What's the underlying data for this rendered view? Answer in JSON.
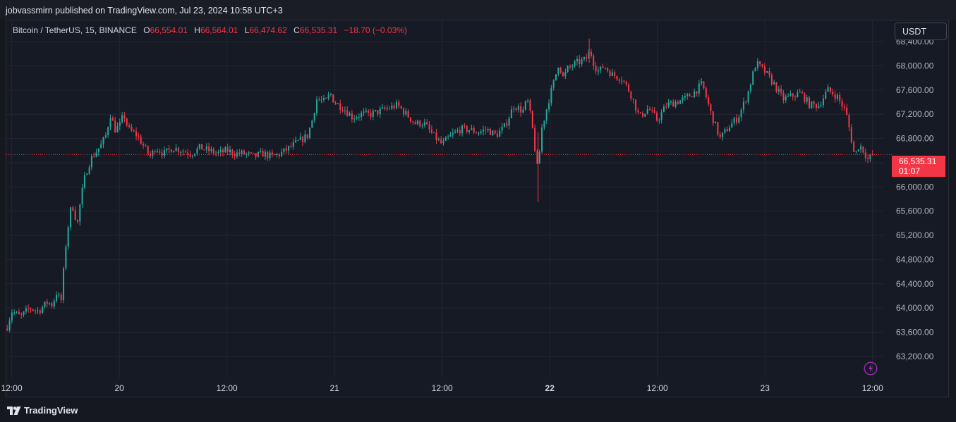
{
  "publisher_line": "jobvassmirn published on TradingView.com, Jul 23, 2024 10:58 UTC+3",
  "legend": {
    "symbol": "Bitcoin / TetherUS, 15, BINANCE",
    "o_label": "O",
    "o_value": "66,554.01",
    "h_label": "H",
    "h_value": "66,564.01",
    "l_label": "L",
    "l_value": "66,474.62",
    "c_label": "C",
    "c_value": "66,535.31",
    "change": "−18.70 (−0.03%)"
  },
  "currency_button": "USDT",
  "price_badge": {
    "price": "66,535.31",
    "countdown": "01:07"
  },
  "brand": "TradingView",
  "icons": {
    "flash": "lightning-bolt-icon",
    "logo": "tradingview-logo-icon"
  },
  "colors": {
    "up": "#26a69a",
    "down": "#f23645",
    "background": "#161a25",
    "grid": "#242733",
    "alert": "#9c27b0"
  },
  "chart_data": {
    "type": "candlestick",
    "symbol": "Bitcoin / TetherUS",
    "interval": "15",
    "exchange": "BINANCE",
    "currency": "USDT",
    "ylim": [
      62850,
      68750
    ],
    "y_ticks": [
      "68,400.00",
      "68,000.00",
      "67,600.00",
      "67,200.00",
      "66,800.00",
      "66,400.00",
      "66,000.00",
      "65,600.00",
      "65,200.00",
      "64,800.00",
      "64,400.00",
      "64,000.00",
      "63,600.00",
      "63,200.00"
    ],
    "x_ticks": [
      {
        "label": "12:00",
        "t": 0
      },
      {
        "label": "20",
        "t": 12
      },
      {
        "label": "12:00",
        "t": 24
      },
      {
        "label": "21",
        "t": 36
      },
      {
        "label": "12:00",
        "t": 48
      },
      {
        "label": "22",
        "t": 60
      },
      {
        "label": "12:00",
        "t": 72
      },
      {
        "label": "23",
        "t": 84
      },
      {
        "label": "12:00",
        "t": 96
      }
    ],
    "xlim": [
      -0.6,
      97.2
    ],
    "last_price": 66535.31,
    "series": [
      {
        "t": -0.5,
        "close": 63700
      },
      {
        "t": 0,
        "close": 63950
      },
      {
        "t": 1,
        "close": 63850
      },
      {
        "t": 2,
        "close": 64000
      },
      {
        "t": 3,
        "close": 63950
      },
      {
        "t": 4,
        "close": 64100
      },
      {
        "t": 4.5,
        "close": 64050
      },
      {
        "t": 5,
        "close": 64250
      },
      {
        "t": 5.5,
        "close": 64100
      },
      {
        "t": 6,
        "close": 65000
      },
      {
        "t": 6.5,
        "close": 65600
      },
      {
        "t": 7,
        "close": 65700
      },
      {
        "t": 7.2,
        "close": 65250
      },
      {
        "t": 7.7,
        "close": 65800
      },
      {
        "t": 8.2,
        "close": 66200
      },
      {
        "t": 8.8,
        "close": 66450
      },
      {
        "t": 9.5,
        "close": 66600
      },
      {
        "t": 10,
        "close": 66700
      },
      {
        "t": 10.5,
        "close": 66850
      },
      {
        "t": 11,
        "close": 67200
      },
      {
        "t": 11.5,
        "close": 66950
      },
      {
        "t": 12,
        "close": 67000
      },
      {
        "t": 12.5,
        "close": 67200
      },
      {
        "t": 13,
        "close": 66950
      },
      {
        "t": 14,
        "close": 66850
      },
      {
        "t": 15,
        "close": 66600
      },
      {
        "t": 15.5,
        "close": 66500
      },
      {
        "t": 16,
        "close": 66650
      },
      {
        "t": 17,
        "close": 66550
      },
      {
        "t": 18,
        "close": 66650
      },
      {
        "t": 19,
        "close": 66600
      },
      {
        "t": 20,
        "close": 66550
      },
      {
        "t": 21,
        "close": 66650
      },
      {
        "t": 22,
        "close": 66600
      },
      {
        "t": 23,
        "close": 66550
      },
      {
        "t": 24,
        "close": 66600
      },
      {
        "t": 25,
        "close": 66550
      },
      {
        "t": 26,
        "close": 66550
      },
      {
        "t": 27,
        "close": 66500
      },
      {
        "t": 28,
        "close": 66550
      },
      {
        "t": 29,
        "close": 66500
      },
      {
        "t": 30,
        "close": 66550
      },
      {
        "t": 31,
        "close": 66650
      },
      {
        "t": 32,
        "close": 66750
      },
      {
        "t": 33,
        "close": 66850
      },
      {
        "t": 33.5,
        "close": 67100
      },
      {
        "t": 34,
        "close": 67450
      },
      {
        "t": 35,
        "close": 67400
      },
      {
        "t": 35.5,
        "close": 67550
      },
      {
        "t": 36,
        "close": 67400
      },
      {
        "t": 37,
        "close": 67300
      },
      {
        "t": 38,
        "close": 67150
      },
      {
        "t": 39,
        "close": 67200
      },
      {
        "t": 40,
        "close": 67200
      },
      {
        "t": 41,
        "close": 67250
      },
      {
        "t": 42,
        "close": 67300
      },
      {
        "t": 43,
        "close": 67350
      },
      {
        "t": 44,
        "close": 67200
      },
      {
        "t": 45,
        "close": 67050
      },
      {
        "t": 46,
        "close": 67050
      },
      {
        "t": 47,
        "close": 66850
      },
      {
        "t": 48,
        "close": 66700
      },
      {
        "t": 49,
        "close": 66850
      },
      {
        "t": 50,
        "close": 66950
      },
      {
        "t": 51,
        "close": 66950
      },
      {
        "t": 52,
        "close": 66900
      },
      {
        "t": 53,
        "close": 66950
      },
      {
        "t": 54,
        "close": 66850
      },
      {
        "t": 55,
        "close": 67000
      },
      {
        "t": 56,
        "close": 67350
      },
      {
        "t": 57,
        "close": 67250
      },
      {
        "t": 57.5,
        "close": 67450
      },
      {
        "t": 58,
        "close": 67050
      },
      {
        "t": 58.7,
        "close": 66200
      },
      {
        "t": 59,
        "close": 66900
      },
      {
        "t": 59.5,
        "close": 67200
      },
      {
        "t": 60,
        "close": 67500
      },
      {
        "t": 60.5,
        "close": 67750
      },
      {
        "t": 61,
        "close": 68050
      },
      {
        "t": 61.5,
        "close": 67800
      },
      {
        "t": 62,
        "close": 67950
      },
      {
        "t": 63,
        "close": 68050
      },
      {
        "t": 64,
        "close": 68100
      },
      {
        "t": 64.5,
        "close": 68250
      },
      {
        "t": 65,
        "close": 68000
      },
      {
        "t": 65.5,
        "close": 67900
      },
      {
        "t": 66,
        "close": 68000
      },
      {
        "t": 67,
        "close": 67850
      },
      {
        "t": 68,
        "close": 67800
      },
      {
        "t": 69,
        "close": 67550
      },
      {
        "t": 70,
        "close": 67150
      },
      {
        "t": 71,
        "close": 67300
      },
      {
        "t": 72,
        "close": 67100
      },
      {
        "t": 73,
        "close": 67350
      },
      {
        "t": 74,
        "close": 67400
      },
      {
        "t": 75,
        "close": 67450
      },
      {
        "t": 76,
        "close": 67550
      },
      {
        "t": 77,
        "close": 67700
      },
      {
        "t": 78,
        "close": 67200
      },
      {
        "t": 79,
        "close": 66800
      },
      {
        "t": 80,
        "close": 67000
      },
      {
        "t": 81,
        "close": 67150
      },
      {
        "t": 82,
        "close": 67500
      },
      {
        "t": 83,
        "close": 68050
      },
      {
        "t": 84,
        "close": 67900
      },
      {
        "t": 85,
        "close": 67700
      },
      {
        "t": 86,
        "close": 67450
      },
      {
        "t": 87,
        "close": 67500
      },
      {
        "t": 88,
        "close": 67550
      },
      {
        "t": 89,
        "close": 67350
      },
      {
        "t": 90,
        "close": 67350
      },
      {
        "t": 91,
        "close": 67600
      },
      {
        "t": 92,
        "close": 67500
      },
      {
        "t": 93,
        "close": 67250
      },
      {
        "t": 93.5,
        "close": 66900
      },
      {
        "t": 94,
        "close": 66500
      },
      {
        "t": 94.5,
        "close": 66700
      },
      {
        "t": 95,
        "close": 66600
      },
      {
        "t": 95.5,
        "close": 66450
      },
      {
        "t": 96,
        "close": 66535.31
      }
    ]
  }
}
